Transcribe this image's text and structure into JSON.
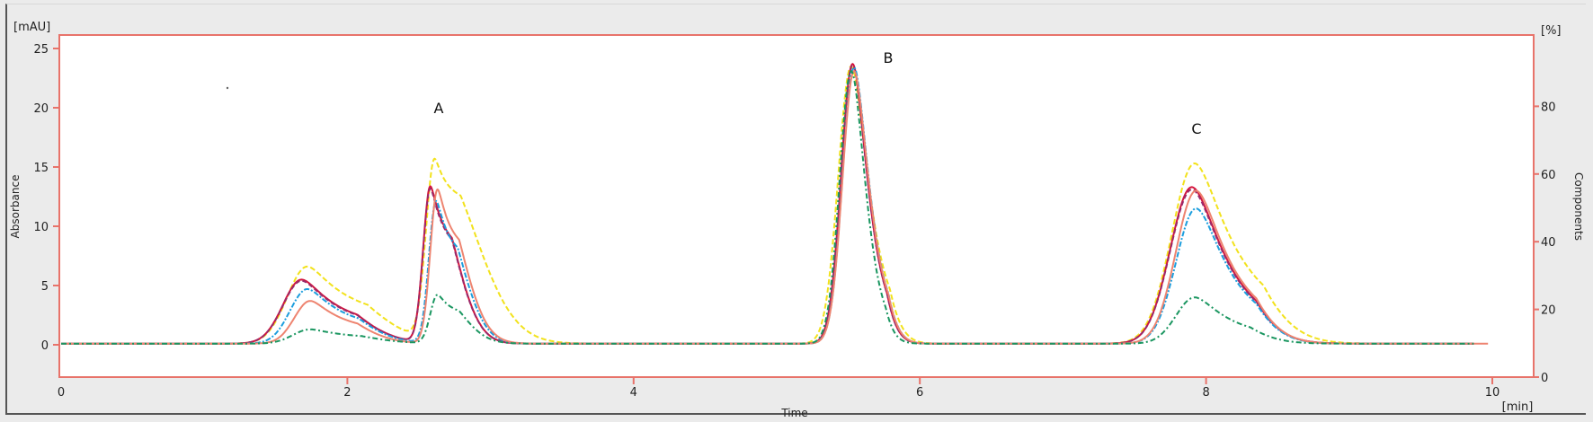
{
  "chart_data": {
    "type": "line",
    "title": "",
    "xlabel": "Time",
    "x_unit": "[min]",
    "ylabel": "Absorbance",
    "y_unit": "[mAU]",
    "y2label": "Components",
    "y2_unit": "[%]",
    "xlim": [
      0,
      10.2
    ],
    "ylim": [
      -2.7,
      26
    ],
    "y2lim": [
      0,
      96
    ],
    "x_ticks": [
      0,
      2,
      4,
      6,
      8,
      10
    ],
    "y_ticks": [
      0,
      5,
      10,
      15,
      20,
      25
    ],
    "y2_ticks": [
      0,
      20,
      40,
      60,
      80
    ],
    "grid": false,
    "legend": null,
    "annotations": [
      {
        "text": "A",
        "x": 2.65,
        "y": 19.9
      },
      {
        "text": "B",
        "x": 5.82,
        "y": 24.0
      },
      {
        "text": "C",
        "x": 7.9,
        "y": 18.3
      }
    ],
    "peaks": [
      {
        "name": "pre-peak",
        "rt_min": 1.72
      },
      {
        "name": "A",
        "rt_min": 2.6
      },
      {
        "name": "B",
        "rt_min": 5.53
      },
      {
        "name": "C",
        "rt_min": 7.92
      }
    ],
    "series": [
      {
        "name": "trace-yellow",
        "color": "#f2e21c",
        "dash": "6,3",
        "peaks": [
          {
            "rt": 1.72,
            "h": 6.5,
            "w": 0.14,
            "tail": 0.22
          },
          {
            "rt": 2.61,
            "h": 15.3,
            "w": 0.06,
            "tail": 0.22
          },
          {
            "rt": 5.52,
            "h": 23.4,
            "w": 0.09,
            "tail": 0.06
          },
          {
            "rt": 7.92,
            "h": 15.2,
            "w": 0.16,
            "tail": 0.16
          }
        ],
        "end_x": 9.87
      },
      {
        "name": "trace-red",
        "color": "#d4143c",
        "dash": "none",
        "peaks": [
          {
            "rt": 1.68,
            "h": 5.4,
            "w": 0.13,
            "tail": 0.18
          },
          {
            "rt": 2.58,
            "h": 13.2,
            "w": 0.05,
            "tail": 0.12
          },
          {
            "rt": 5.53,
            "h": 23.6,
            "w": 0.08,
            "tail": 0.05
          },
          {
            "rt": 7.9,
            "h": 13.2,
            "w": 0.15,
            "tail": 0.13
          }
        ],
        "end_x": 9.87
      },
      {
        "name": "trace-purple",
        "color": "#9a2a6a",
        "dash": "5,3",
        "peaks": [
          {
            "rt": 1.68,
            "h": 5.3,
            "w": 0.13,
            "tail": 0.18
          },
          {
            "rt": 2.58,
            "h": 13.0,
            "w": 0.05,
            "tail": 0.12
          },
          {
            "rt": 5.53,
            "h": 23.5,
            "w": 0.08,
            "tail": 0.05
          },
          {
            "rt": 7.9,
            "h": 13.0,
            "w": 0.15,
            "tail": 0.13
          }
        ],
        "end_x": 9.87
      },
      {
        "name": "trace-blue",
        "color": "#1c9ede",
        "dash": "6,2,2,2",
        "peaks": [
          {
            "rt": 1.72,
            "h": 4.6,
            "w": 0.12,
            "tail": 0.17
          },
          {
            "rt": 2.62,
            "h": 12.0,
            "w": 0.05,
            "tail": 0.12
          },
          {
            "rt": 5.54,
            "h": 23.3,
            "w": 0.08,
            "tail": 0.05
          },
          {
            "rt": 7.93,
            "h": 11.4,
            "w": 0.14,
            "tail": 0.13
          }
        ],
        "end_x": 9.87
      },
      {
        "name": "trace-salmon",
        "color": "#ee8470",
        "dash": "none",
        "peaks": [
          {
            "rt": 1.74,
            "h": 3.6,
            "w": 0.11,
            "tail": 0.16
          },
          {
            "rt": 2.63,
            "h": 13.0,
            "w": 0.05,
            "tail": 0.12
          },
          {
            "rt": 5.54,
            "h": 23.0,
            "w": 0.08,
            "tail": 0.05
          },
          {
            "rt": 7.93,
            "h": 12.9,
            "w": 0.14,
            "tail": 0.13
          }
        ],
        "end_x": 9.97
      },
      {
        "name": "trace-green",
        "color": "#1a9660",
        "dash": "6,3,2,3",
        "peaks": [
          {
            "rt": 1.74,
            "h": 1.2,
            "w": 0.12,
            "tail": 0.2
          },
          {
            "rt": 2.63,
            "h": 4.1,
            "w": 0.05,
            "tail": 0.12
          },
          {
            "rt": 5.52,
            "h": 23.0,
            "w": 0.08,
            "tail": 0.04
          },
          {
            "rt": 7.92,
            "h": 3.9,
            "w": 0.13,
            "tail": 0.14
          }
        ],
        "end_x": 9.87
      }
    ]
  },
  "axes": {
    "y_unit": "[mAU]",
    "y_title": "Absorbance",
    "y2_unit": "[%]",
    "y2_title": "Components",
    "x_title": "Time",
    "x_unit": "[min]",
    "x_tick_labels": [
      "0",
      "2",
      "4",
      "6",
      "8",
      "10"
    ],
    "y_tick_labels": [
      "0",
      "5",
      "10",
      "15",
      "20",
      "25"
    ],
    "y2_tick_labels": [
      "0",
      "20",
      "40",
      "60",
      "80"
    ]
  },
  "annotations": {
    "a": "A",
    "b": "B",
    "c": "C"
  },
  "colors": {
    "axis": "#e8736a",
    "background": "#ebebeb",
    "plot_bg": "#ffffff"
  }
}
